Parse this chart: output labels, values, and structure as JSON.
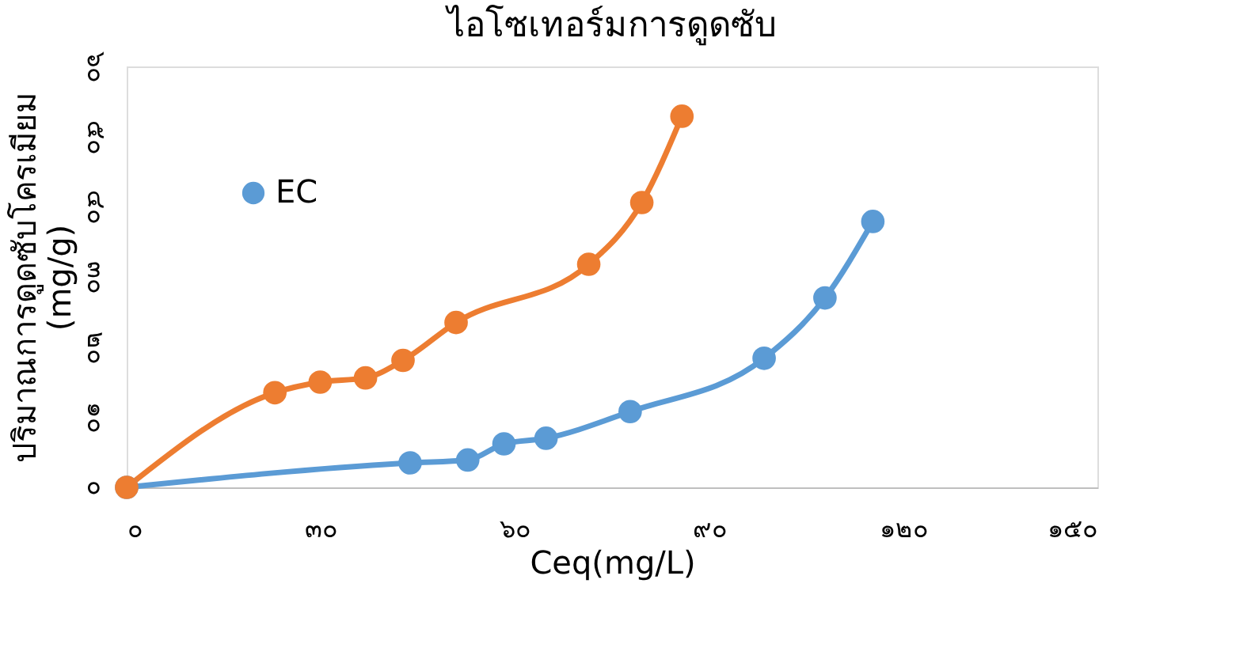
{
  "chart_data": {
    "type": "line",
    "title": "ไอโซเทอร์มการดูดซับ",
    "xlabel": "Ceq(mg/L)",
    "ylabel": "ปริมาณการดูดซับโครเมียม\n(mg/g)",
    "xlim": [
      0,
      150
    ],
    "ylim": [
      0,
      60
    ],
    "xticks": [
      {
        "value": 0,
        "label": "๐"
      },
      {
        "value": 30,
        "label": "๓๐"
      },
      {
        "value": 60,
        "label": "๖๐"
      },
      {
        "value": 90,
        "label": "๙๐"
      },
      {
        "value": 120,
        "label": "๑๒๐"
      },
      {
        "value": 150,
        "label": "๑๕๐"
      }
    ],
    "yticks": [
      {
        "value": 0,
        "label": "๐"
      },
      {
        "value": 10,
        "label": "๑๐"
      },
      {
        "value": 20,
        "label": "๒๐"
      },
      {
        "value": 30,
        "label": "๓๐"
      },
      {
        "value": 40,
        "label": "๔๐"
      },
      {
        "value": 50,
        "label": "๕๐"
      },
      {
        "value": 60,
        "label": "๖๐"
      }
    ],
    "grid": false,
    "legend": "top left",
    "marker": "circle",
    "line_style": "solid",
    "series": [
      {
        "name": "EC",
        "color": "#5b9bd5",
        "x": [
          0,
          43.8,
          52.7,
          58.3,
          64.8,
          77.8,
          98.5,
          107.9,
          115.3
        ],
        "values": [
          0,
          3.5,
          3.9,
          6.2,
          7.0,
          10.8,
          18.4,
          27.0,
          37.9
        ]
      },
      {
        "color": "#ed7d31",
        "x": [
          0,
          22.9,
          29.9,
          36.9,
          42.7,
          50.9,
          71.4,
          79.6,
          85.8
        ],
        "values": [
          0,
          13.5,
          15.0,
          15.6,
          18.1,
          23.5,
          31.8,
          40.6,
          52.9
        ]
      }
    ]
  }
}
